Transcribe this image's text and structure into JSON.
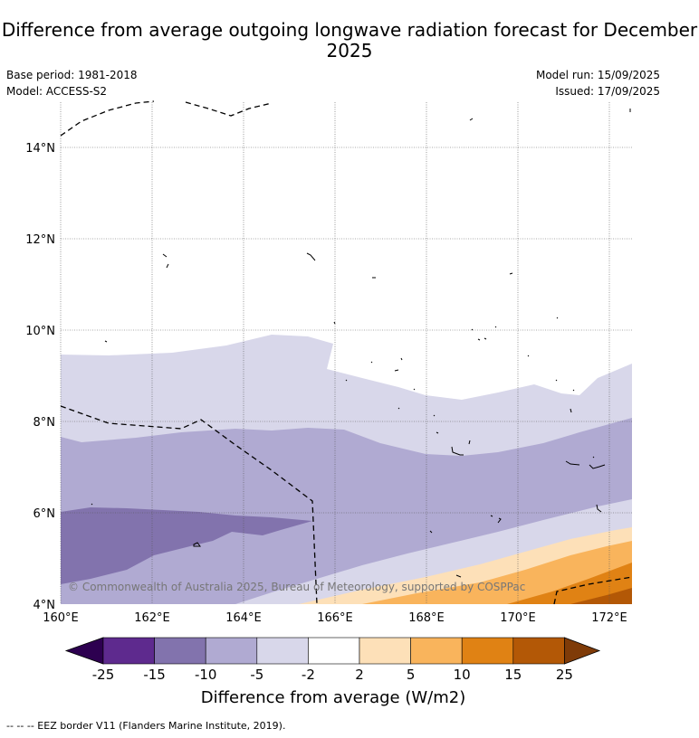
{
  "title": "Difference from average outgoing longwave radiation forecast for December 2025",
  "meta": {
    "base_period": "Base period: 1981-2018",
    "model": "Model: ACCESS-S2",
    "model_run": "Model run: 15/09/2025",
    "issued": "Issued: 17/09/2025"
  },
  "map": {
    "lon_ticks": [
      "160°E",
      "162°E",
      "164°E",
      "166°E",
      "168°E",
      "170°E",
      "172°E"
    ],
    "lat_ticks": [
      "4°N",
      "6°N",
      "8°N",
      "10°N",
      "12°N",
      "14°N"
    ],
    "watermark": "© Commonwealth of Australia 2025, Bureau of Meteorology, supported by COSPPac"
  },
  "colorbar": {
    "title": "Difference from average (W/m2)",
    "ticks": [
      "-25",
      "-15",
      "-10",
      "-5",
      "-2",
      "2",
      "5",
      "10",
      "15",
      "25"
    ],
    "colors": [
      "#2d0050",
      "#5e2a8e",
      "#8273ad",
      "#b0aad2",
      "#d8d7ea",
      "#ffffff",
      "#fde0b8",
      "#f9b45c",
      "#e08214",
      "#b35806",
      "#7f3b08"
    ]
  },
  "footnote": "--  --  -- EEZ border V11 (Flanders Marine Institute, 2019)."
}
